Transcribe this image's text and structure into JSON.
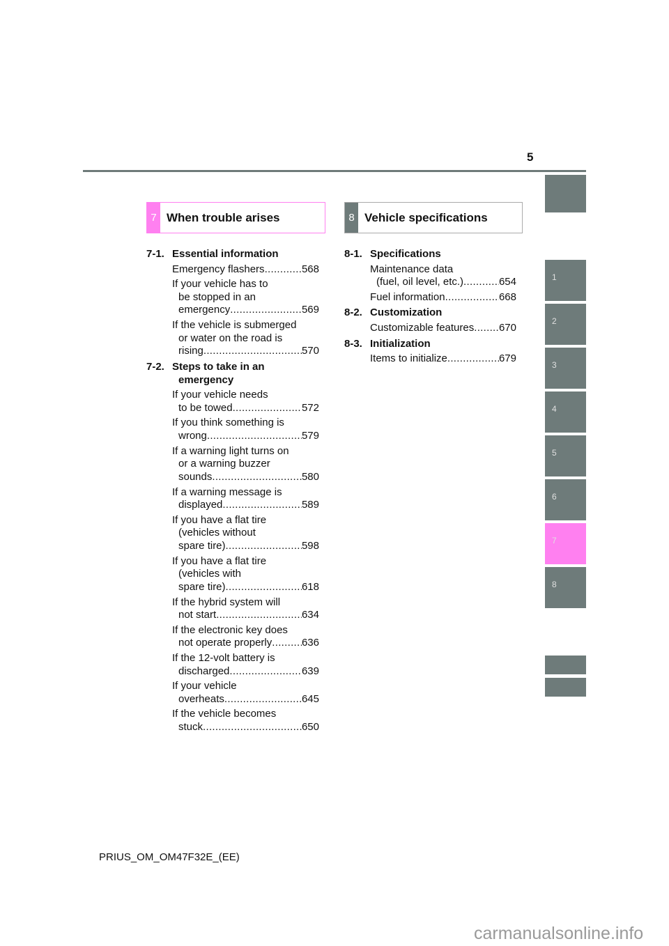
{
  "page_number": "5",
  "footer": "PRIUS_OM_OM47F32E_(EE)",
  "watermark": "carmanualsonline.info",
  "colors": {
    "accent": "#ff80f0",
    "tab": "#6e7b7a"
  },
  "tabs": [
    "1",
    "2",
    "3",
    "4",
    "5",
    "6",
    "7",
    "8"
  ],
  "active_tab": "7",
  "chapters": [
    {
      "num": "7",
      "title": "When trouble arises",
      "sections": [
        {
          "num": "7-1.",
          "title": [
            "Essential information"
          ],
          "entries": [
            {
              "lines": [
                "Emergency flashers"
              ],
              "page": "568"
            },
            {
              "lines": [
                "If your vehicle has to",
                "be stopped in an",
                "emergency"
              ],
              "page": "569"
            },
            {
              "lines": [
                "If the vehicle is submerged",
                "or water on the road is",
                "rising"
              ],
              "page": "570"
            }
          ]
        },
        {
          "num": "7-2.",
          "title": [
            "Steps to take in an",
            "emergency"
          ],
          "entries": [
            {
              "lines": [
                "If your vehicle needs",
                "to be towed"
              ],
              "page": "572"
            },
            {
              "lines": [
                "If you think something is",
                "wrong"
              ],
              "page": "579"
            },
            {
              "lines": [
                "If a warning light turns on",
                "or a warning buzzer",
                "sounds"
              ],
              "page": "580"
            },
            {
              "lines": [
                "If a warning message is",
                "displayed"
              ],
              "page": "589"
            },
            {
              "lines": [
                "If you have a flat tire",
                "(vehicles without",
                "spare tire)"
              ],
              "page": "598"
            },
            {
              "lines": [
                "If you have a flat tire",
                "(vehicles with",
                "spare tire)"
              ],
              "page": "618"
            },
            {
              "lines": [
                "If the hybrid system will",
                "not start"
              ],
              "page": "634"
            },
            {
              "lines": [
                "If the electronic key does",
                "not operate properly"
              ],
              "page": "636"
            },
            {
              "lines": [
                "If the 12-volt battery is",
                "discharged"
              ],
              "page": "639"
            },
            {
              "lines": [
                "If your vehicle",
                "overheats"
              ],
              "page": "645"
            },
            {
              "lines": [
                "If the vehicle becomes",
                "stuck"
              ],
              "page": "650"
            }
          ]
        }
      ]
    },
    {
      "num": "8",
      "title": "Vehicle specifications",
      "sections": [
        {
          "num": "8-1.",
          "title": [
            "Specifications"
          ],
          "entries": [
            {
              "lines": [
                "Maintenance data",
                "(fuel, oil level, etc.)"
              ],
              "page": "654"
            },
            {
              "lines": [
                "Fuel information"
              ],
              "page": "668"
            }
          ]
        },
        {
          "num": "8-2.",
          "title": [
            "Customization"
          ],
          "entries": [
            {
              "lines": [
                "Customizable features"
              ],
              "page": "670"
            }
          ]
        },
        {
          "num": "8-3.",
          "title": [
            "Initialization"
          ],
          "entries": [
            {
              "lines": [
                "Items to initialize"
              ],
              "page": "679"
            }
          ]
        }
      ]
    }
  ]
}
